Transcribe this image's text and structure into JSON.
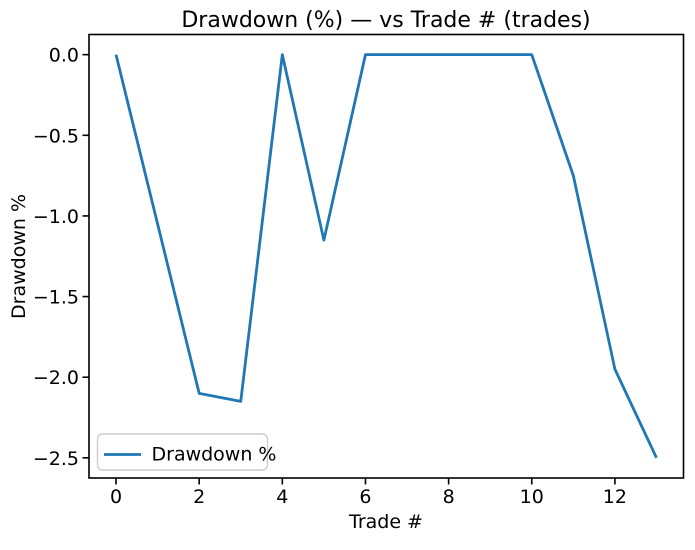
{
  "figure": {
    "background": "#ffffff",
    "axis_color": "#000000"
  },
  "chart_data": {
    "type": "line",
    "title": "Drawdown (%) — vs Trade # (trades)",
    "xlabel": "Trade #",
    "ylabel": "Drawdown %",
    "x": [
      0,
      1,
      2,
      3,
      4,
      5,
      6,
      7,
      8,
      9,
      10,
      11,
      12,
      13
    ],
    "series": [
      {
        "name": "Drawdown %",
        "color": "#1f77b4",
        "values": [
          0.0,
          -1.05,
          -2.1,
          -2.15,
          0.0,
          -1.15,
          0.0,
          0.0,
          0.0,
          0.0,
          0.0,
          -0.75,
          -1.95,
          -2.5
        ]
      }
    ],
    "xlim": [
      -0.65,
      13.65
    ],
    "ylim": [
      -2.625,
      0.125
    ],
    "xticks": {
      "values": [
        0,
        2,
        4,
        6,
        8,
        10,
        12
      ],
      "labels": [
        "0",
        "2",
        "4",
        "6",
        "8",
        "10",
        "12"
      ]
    },
    "yticks": {
      "values": [
        0,
        -0.5,
        -1.0,
        -1.5,
        -2.0,
        -2.5
      ],
      "labels": [
        "0.0",
        "−0.5",
        "−1.0",
        "−1.5",
        "−2.0",
        "−2.5"
      ]
    },
    "legend": {
      "position": "lower left",
      "entries": [
        "Drawdown %"
      ]
    },
    "grid": false
  }
}
